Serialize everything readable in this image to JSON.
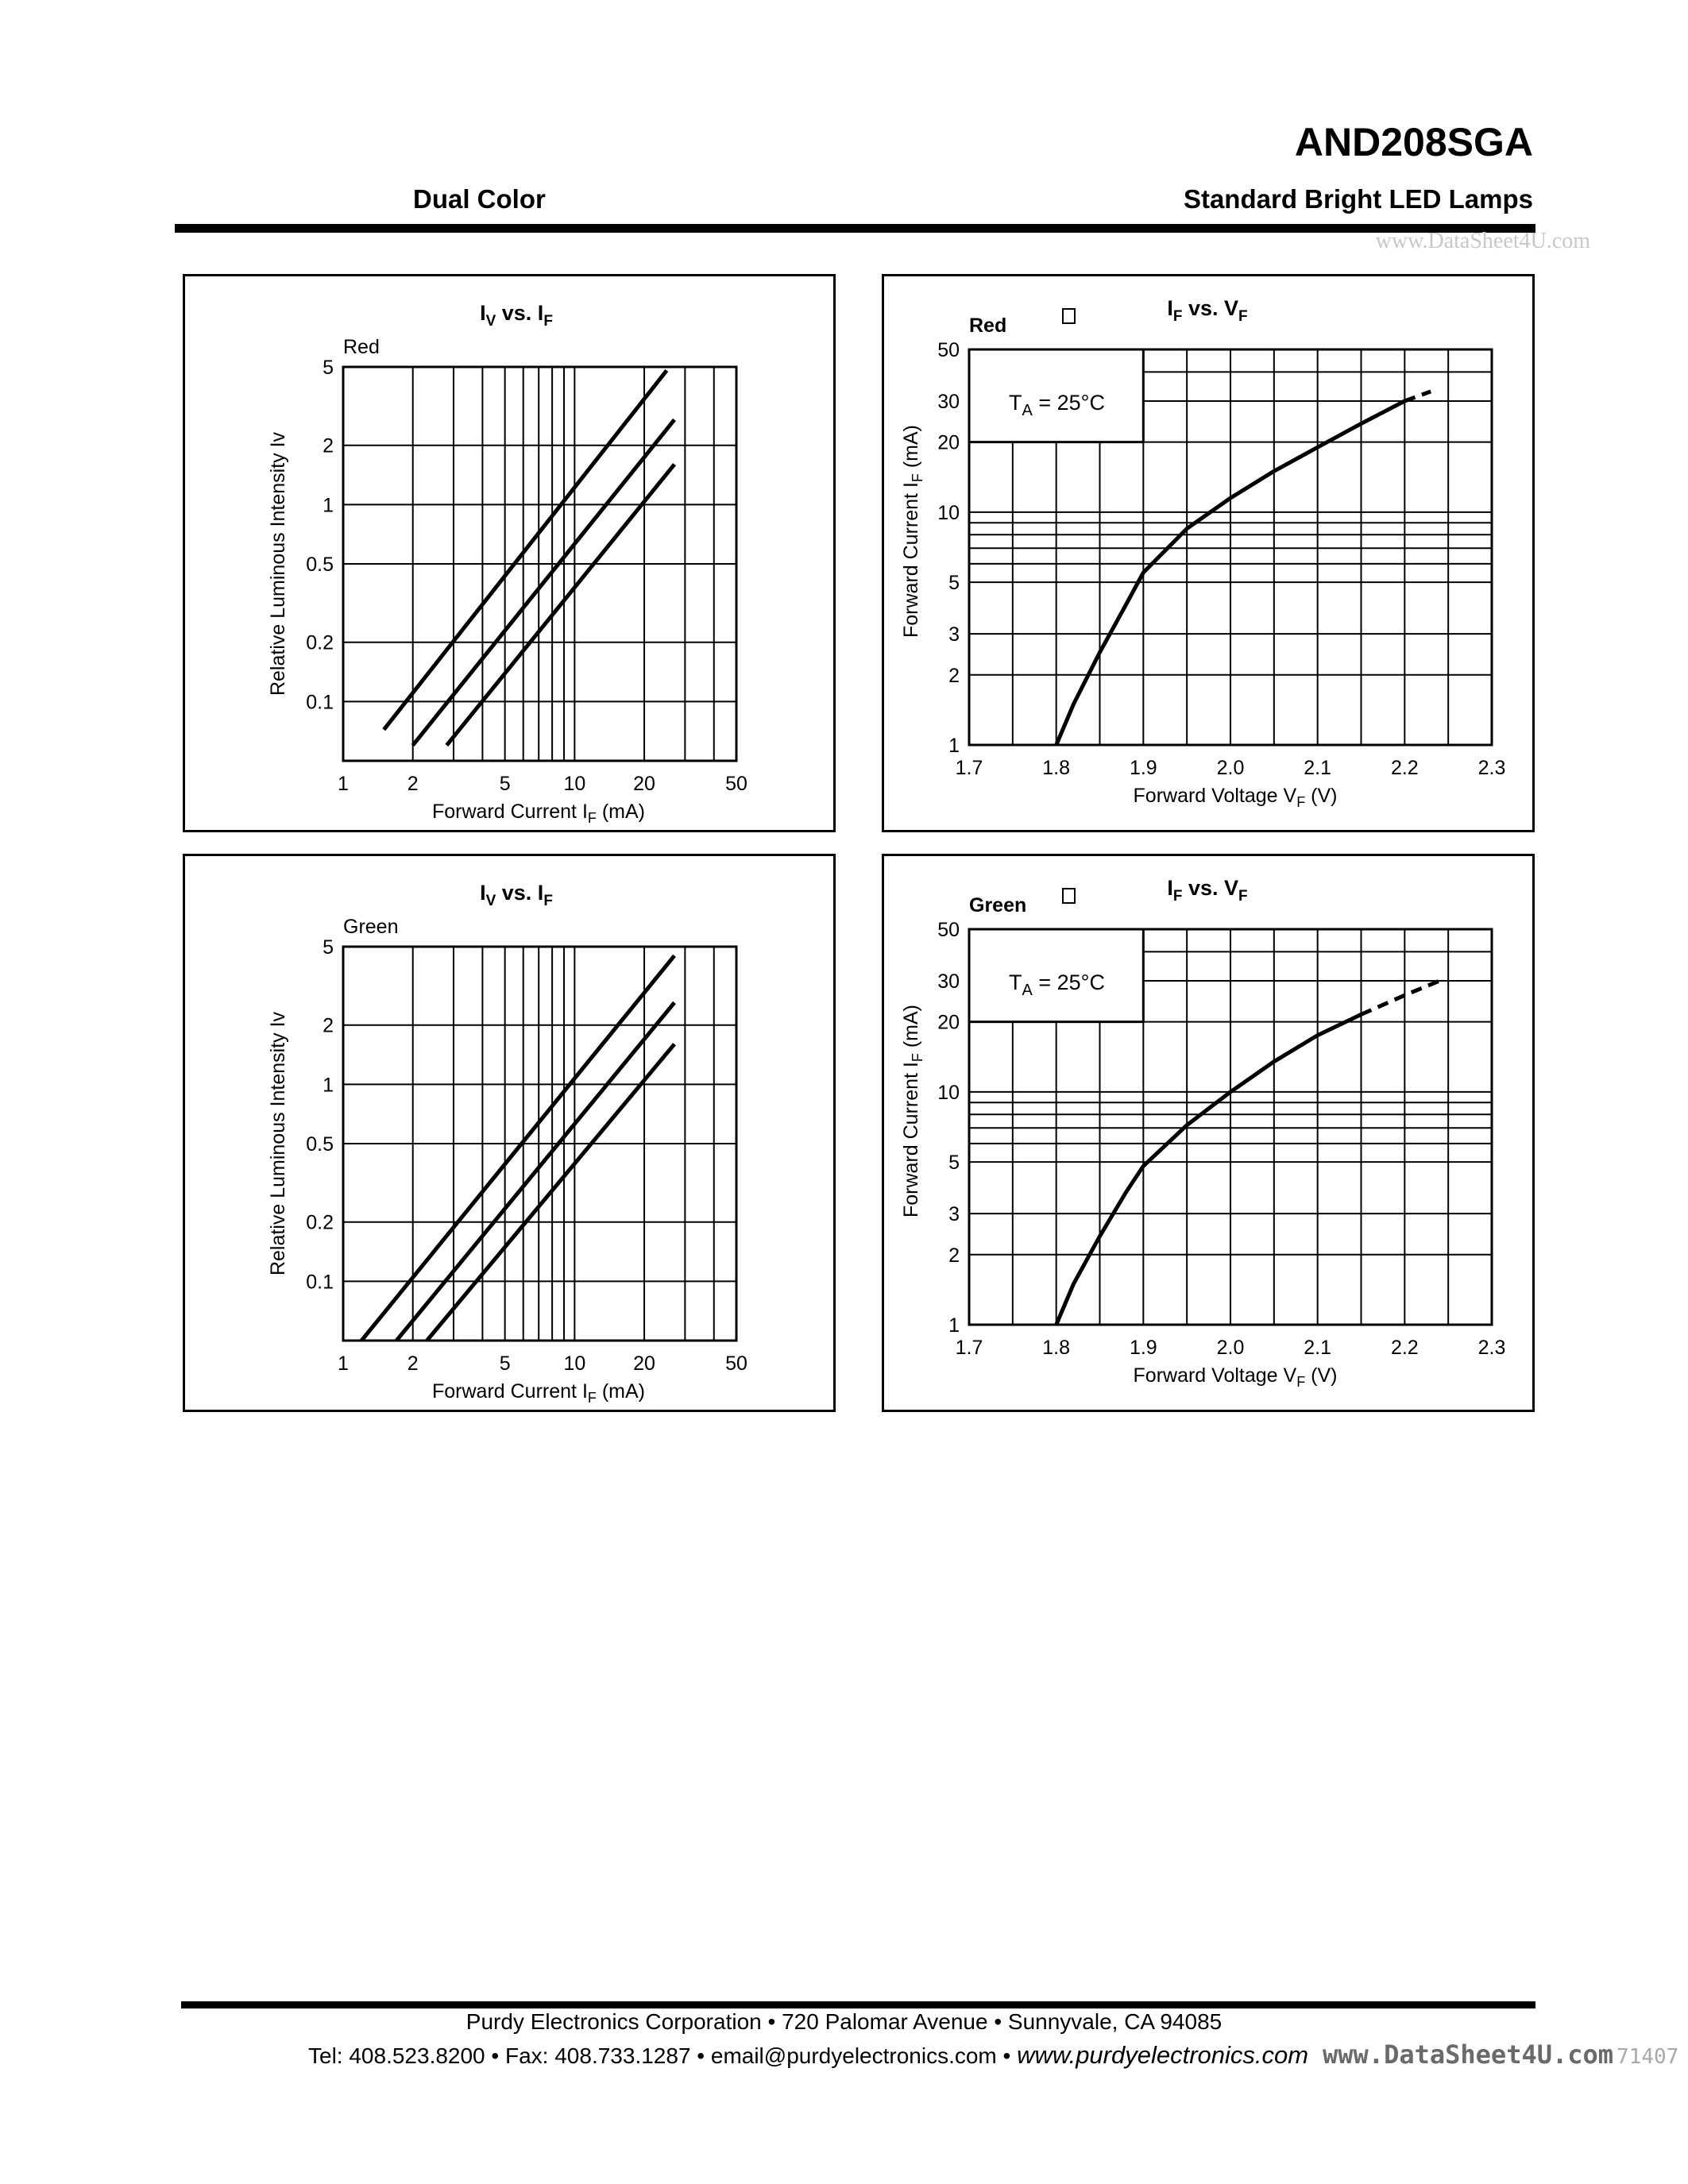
{
  "header": {
    "part_number": "AND208SGA",
    "subtitle_left": "Dual Color",
    "subtitle_right": "Standard Bright LED Lamps",
    "watermark": "www.DataSheet4U.com"
  },
  "footer": {
    "line1": "Purdy Electronics Corporation  •  720 Palomar Avenue  •  Sunnyvale, CA 94085",
    "line2_contact": "Tel: 408.523.8200  •  Fax: 408.733.1287  •  email@purdyelectronics.com  •",
    "line2_web": "www.purdyelectronics.com",
    "watermark": "www.DataSheet4U.com",
    "watermark_faint": "71407"
  },
  "chart_data": [
    {
      "type": "line",
      "title": "IV vs. IF",
      "title_main": "I",
      "title_sub": "V",
      "title_mid": " vs. I",
      "title_sub2": "F",
      "annotation": "Red",
      "xlabel_main": "Forward Current I",
      "xlabel_sub": "F",
      "xlabel_tail": " (mA)",
      "ylabel": "Relative Luminous Intensity Iv",
      "xscale": "log",
      "yscale": "log",
      "xlim": [
        1,
        50
      ],
      "ylim": [
        0.05,
        5
      ],
      "x_ticks": [
        1,
        2,
        5,
        10,
        20,
        50
      ],
      "x_tick_labels": [
        "1",
        "2",
        "5",
        "10",
        "20",
        "50"
      ],
      "y_ticks": [
        0.1,
        0.2,
        0.5,
        1,
        2,
        5
      ],
      "y_tick_labels": [
        "0.1",
        "0.2",
        "0.5",
        "1",
        "2",
        "5"
      ],
      "grid": true,
      "series": [
        {
          "x": [
            1.5,
            25
          ],
          "y": [
            0.072,
            4.8
          ]
        },
        {
          "x": [
            2.0,
            27
          ],
          "y": [
            0.06,
            2.7
          ]
        },
        {
          "x": [
            2.8,
            27
          ],
          "y": [
            0.06,
            1.6
          ]
        }
      ]
    },
    {
      "type": "line",
      "title": "IF vs. VF",
      "title_main": "I",
      "title_sub": "F",
      "title_mid": " vs. V",
      "title_sub2": "F",
      "annotation": "Red",
      "legend_box": "TA = 25°C",
      "legend_main": "T",
      "legend_sub": "A",
      "legend_tail": " = 25°C",
      "xlabel_main": "Forward Voltage V",
      "xlabel_sub": "F",
      "xlabel_tail": " (V)",
      "ylabel_main": "Forward Current  I",
      "ylabel_sub": "F",
      "ylabel_tail": "  (mA)",
      "xscale": "linear",
      "yscale": "log",
      "xlim": [
        1.7,
        2.3
      ],
      "ylim": [
        1,
        50
      ],
      "x_ticks": [
        1.7,
        1.8,
        1.9,
        2.0,
        2.1,
        2.2,
        2.3
      ],
      "x_tick_labels": [
        "1.7",
        "1.8",
        "1.9",
        "2.0",
        "2.1",
        "2.2",
        "2.3"
      ],
      "y_ticks": [
        1,
        2,
        3,
        5,
        10,
        20,
        30,
        50
      ],
      "y_tick_labels": [
        "1",
        "2",
        "3",
        "5",
        "10",
        "20",
        "30",
        "50"
      ],
      "grid": true,
      "series": [
        {
          "x": [
            1.8,
            1.82,
            1.85,
            1.88,
            1.9,
            1.95,
            2.0,
            2.05,
            2.1,
            2.15,
            2.2
          ],
          "y": [
            1.0,
            1.5,
            2.5,
            4.0,
            5.5,
            8.5,
            11.5,
            15.0,
            19.0,
            24.0,
            30.0
          ],
          "style": "solid"
        },
        {
          "x": [
            2.2,
            2.23
          ],
          "y": [
            30.0,
            33.0
          ],
          "style": "dashed"
        }
      ]
    },
    {
      "type": "line",
      "title": "IV vs. IF",
      "title_main": "I",
      "title_sub": "V",
      "title_mid": " vs. I",
      "title_sub2": "F",
      "annotation": "Green",
      "xlabel_main": "Forward Current I",
      "xlabel_sub": "F",
      "xlabel_tail": " (mA)",
      "ylabel": "Relative Luminous Intensity Iv",
      "xscale": "log",
      "yscale": "log",
      "xlim": [
        1,
        50
      ],
      "ylim": [
        0.05,
        5
      ],
      "x_ticks": [
        1,
        2,
        5,
        10,
        20,
        50
      ],
      "x_tick_labels": [
        "1",
        "2",
        "5",
        "10",
        "20",
        "50"
      ],
      "y_ticks": [
        0.1,
        0.2,
        0.5,
        1,
        2,
        5
      ],
      "y_tick_labels": [
        "0.1",
        "0.2",
        "0.5",
        "1",
        "2",
        "5"
      ],
      "grid": true,
      "series": [
        {
          "x": [
            1.2,
            27
          ],
          "y": [
            0.05,
            4.5
          ]
        },
        {
          "x": [
            1.7,
            27
          ],
          "y": [
            0.05,
            2.6
          ]
        },
        {
          "x": [
            2.3,
            27
          ],
          "y": [
            0.05,
            1.6
          ]
        }
      ]
    },
    {
      "type": "line",
      "title": "IF vs. VF",
      "title_main": "I",
      "title_sub": "F",
      "title_mid": " vs. V",
      "title_sub2": "F",
      "annotation": "Green",
      "legend_box": "TA = 25°C",
      "legend_main": "T",
      "legend_sub": "A",
      "legend_tail": " = 25°C",
      "xlabel_main": "Forward Voltage V",
      "xlabel_sub": "F",
      "xlabel_tail": " (V)",
      "ylabel_main": "Forward Current  I",
      "ylabel_sub": "F",
      "ylabel_tail": "  (mA)",
      "xscale": "linear",
      "yscale": "log",
      "xlim": [
        1.7,
        2.3
      ],
      "ylim": [
        1,
        50
      ],
      "x_ticks": [
        1.7,
        1.8,
        1.9,
        2.0,
        2.1,
        2.2,
        2.3
      ],
      "x_tick_labels": [
        "1.7",
        "1.8",
        "1.9",
        "2.0",
        "2.1",
        "2.2",
        "2.3"
      ],
      "y_ticks": [
        1,
        2,
        3,
        5,
        10,
        20,
        30,
        50
      ],
      "y_tick_labels": [
        "1",
        "2",
        "3",
        "5",
        "10",
        "20",
        "30",
        "50"
      ],
      "grid": true,
      "series": [
        {
          "x": [
            1.8,
            1.82,
            1.85,
            1.88,
            1.9,
            1.95,
            2.0,
            2.05,
            2.1,
            2.15
          ],
          "y": [
            1.0,
            1.5,
            2.4,
            3.7,
            4.8,
            7.2,
            10.0,
            13.5,
            17.5,
            21.5
          ],
          "style": "solid"
        },
        {
          "x": [
            2.15,
            2.2,
            2.24
          ],
          "y": [
            21.5,
            26.0,
            30.0
          ],
          "style": "dashed"
        }
      ]
    }
  ]
}
